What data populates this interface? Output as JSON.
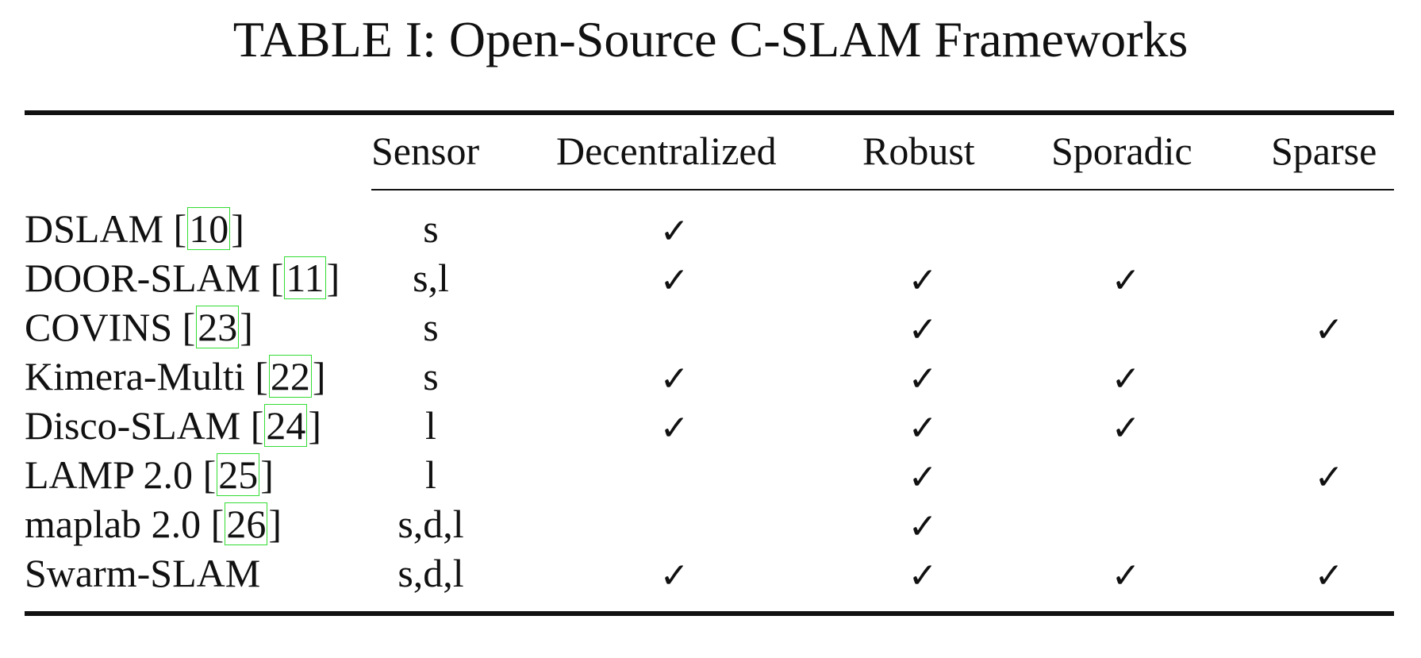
{
  "caption": "TABLE I: Open-Source C-SLAM Frameworks",
  "columns": {
    "sensor": "Sensor",
    "decentralized": "Decentralized",
    "robust": "Robust",
    "sporadic": "Sporadic",
    "sparse": "Sparse"
  },
  "check_symbol": "✓",
  "rows": [
    {
      "name": "DSLAM",
      "ref": "10",
      "sensor": "s",
      "decentralized": true,
      "robust": false,
      "sporadic": false,
      "sparse": false
    },
    {
      "name": "DOOR-SLAM",
      "ref": "11",
      "sensor": "s,l",
      "decentralized": true,
      "robust": true,
      "sporadic": true,
      "sparse": false
    },
    {
      "name": "COVINS",
      "ref": "23",
      "sensor": "s",
      "decentralized": false,
      "robust": true,
      "sporadic": false,
      "sparse": true
    },
    {
      "name": "Kimera-Multi",
      "ref": "22",
      "sensor": "s",
      "decentralized": true,
      "robust": true,
      "sporadic": true,
      "sparse": false
    },
    {
      "name": "Disco-SLAM",
      "ref": "24",
      "sensor": "l",
      "decentralized": true,
      "robust": true,
      "sporadic": true,
      "sparse": false
    },
    {
      "name": "LAMP 2.0",
      "ref": "25",
      "sensor": "l",
      "decentralized": false,
      "robust": true,
      "sporadic": false,
      "sparse": true
    },
    {
      "name": "maplab 2.0",
      "ref": "26",
      "sensor": "s,d,l",
      "decentralized": false,
      "robust": true,
      "sporadic": false,
      "sparse": false
    },
    {
      "name": "Swarm-SLAM",
      "ref": "",
      "sensor": "s,d,l",
      "decentralized": true,
      "robust": true,
      "sporadic": true,
      "sparse": true
    }
  ]
}
